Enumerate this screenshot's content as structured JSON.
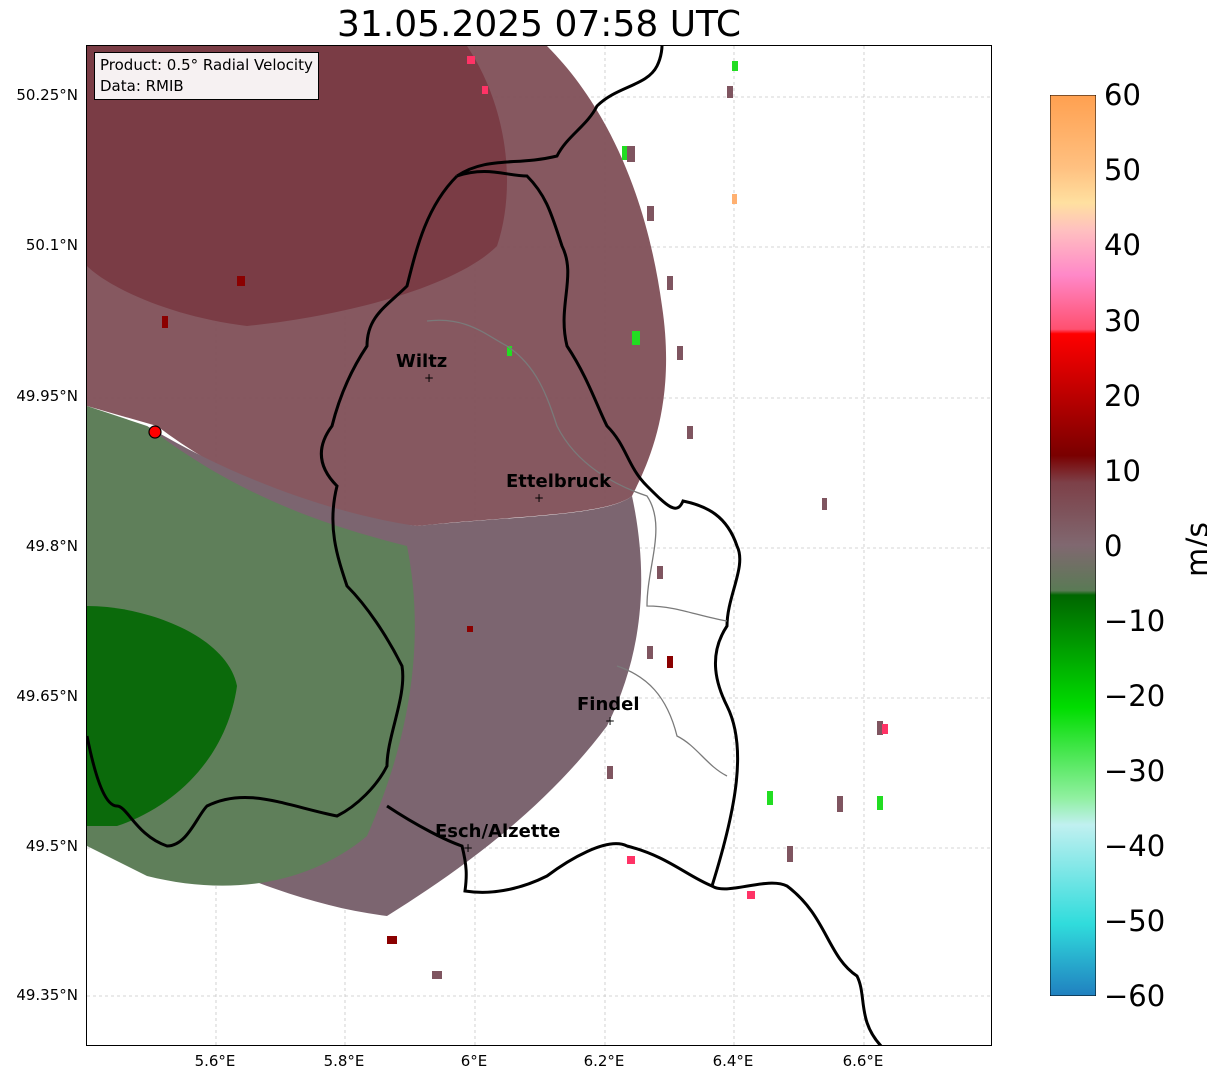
{
  "title": "31.05.2025 07:58 UTC",
  "info": {
    "product": "Product: 0.5° Radial Velocity",
    "data": "Data: RMIB"
  },
  "axes": {
    "y_ticks": [
      "50.25°N",
      "50.1°N",
      "49.95°N",
      "49.8°N",
      "49.65°N",
      "49.5°N",
      "49.35°N"
    ],
    "x_ticks": [
      "5.6°E",
      "5.8°E",
      "6°E",
      "6.2°E",
      "6.4°E",
      "6.6°E"
    ]
  },
  "colorbar": {
    "unit": "m/s",
    "ticks": [
      "60",
      "50",
      "40",
      "30",
      "20",
      "10",
      "0",
      "−10",
      "−20",
      "−30",
      "−40",
      "−50",
      "−60"
    ]
  },
  "cities": [
    {
      "name": "Wiltz"
    },
    {
      "name": "Ettelbruck"
    },
    {
      "name": "Findel"
    },
    {
      "name": "Esch/Alzette"
    }
  ],
  "colors": {
    "inbound_dark": "#006400",
    "inbound_mid": "#5a7a55",
    "outbound_mid": "#7a5560",
    "outbound_dark": "#7d3a42",
    "radar_site": "#ff0000"
  }
}
